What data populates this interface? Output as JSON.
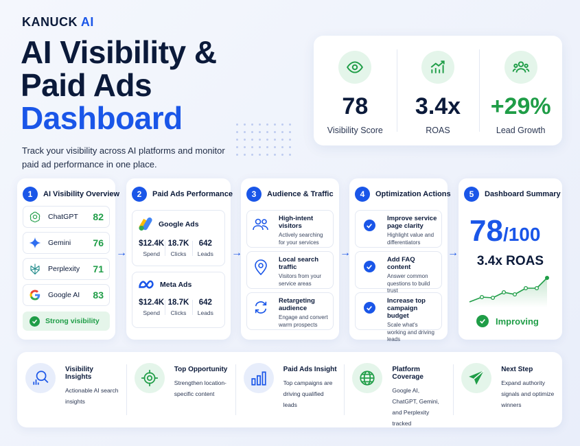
{
  "brand": {
    "name": "KANUCK",
    "ai": "AI"
  },
  "hero": {
    "line1": "AI Visibility &",
    "line2": "Paid Ads",
    "line3": "Dashboard"
  },
  "tagline": "Track your visibility across AI platforms and monitor paid ad performance in one place.",
  "kpis": [
    {
      "icon": "eye-icon",
      "value": "78",
      "label": "Visibility Score"
    },
    {
      "icon": "growth-chart-icon",
      "value": "3.4x",
      "label": "ROAS"
    },
    {
      "icon": "users-group-icon",
      "value": "+29%",
      "label": "Lead Growth"
    }
  ],
  "card1": {
    "num": "1",
    "title": "AI Visibility Overview",
    "platforms": [
      {
        "name": "ChatGPT",
        "score": "82",
        "icon": "chatgpt-icon"
      },
      {
        "name": "Gemini",
        "score": "76",
        "icon": "gemini-icon"
      },
      {
        "name": "Perplexity",
        "score": "71",
        "icon": "perplexity-icon"
      },
      {
        "name": "Google AI",
        "score": "83",
        "icon": "google-icon"
      }
    ],
    "status": "Strong visibility"
  },
  "card2": {
    "num": "2",
    "title": "Paid Ads Performance",
    "ads": [
      {
        "name": "Google Ads",
        "spend": "$12.4K",
        "clicks": "18.7K",
        "leads": "642"
      },
      {
        "name": "Meta Ads",
        "spend": "$12.4K",
        "clicks": "18.7K",
        "leads": "642"
      }
    ],
    "labels": {
      "spend": "Spend",
      "clicks": "Clicks",
      "leads": "Leads"
    }
  },
  "card3": {
    "num": "3",
    "title": "Audience & Traffic",
    "rows": [
      {
        "title": "High-intent visitors",
        "desc": "Actively searching for your services",
        "icon": "users-icon"
      },
      {
        "title": "Local search traffic",
        "desc": "Visitors from your service areas",
        "icon": "location-pin-icon"
      },
      {
        "title": "Retargeting audience",
        "desc": "Engage and convert warm prospects",
        "icon": "refresh-icon"
      }
    ]
  },
  "card4": {
    "num": "4",
    "title": "Optimization Actions",
    "rows": [
      {
        "title": "Improve service page clarity",
        "desc": "Highlight value and differentiators"
      },
      {
        "title": "Add FAQ content",
        "desc": "Answer common questions to build trust"
      },
      {
        "title": "Increase top campaign budget",
        "desc": "Scale what's working and driving leads"
      }
    ]
  },
  "card5": {
    "num": "5",
    "title": "Dashboard Summary",
    "score": "78",
    "score_max": "/100",
    "roas": "3.4x ROAS",
    "status": "Improving"
  },
  "strip": [
    {
      "title": "Visibility Insights",
      "desc": "Actionable AI search insights",
      "icon": "magnifier-chart-icon"
    },
    {
      "title": "Top Opportunity",
      "desc": "Strengthen location-specific content",
      "icon": "target-icon"
    },
    {
      "title": "Paid Ads Insight",
      "desc": "Top campaigns are driving qualified leads",
      "icon": "bar-chart-icon"
    },
    {
      "title": "Platform Coverage",
      "desc": "Google AI, ChatGPT, Gemini, and Perplexity tracked",
      "icon": "globe-icon"
    },
    {
      "title": "Next Step",
      "desc": "Expand authority signals and optimize winners",
      "icon": "paper-plane-icon"
    }
  ],
  "colors": {
    "blue": "#1a56e8",
    "green": "#1f9d47",
    "navy": "#0b1a3a"
  }
}
